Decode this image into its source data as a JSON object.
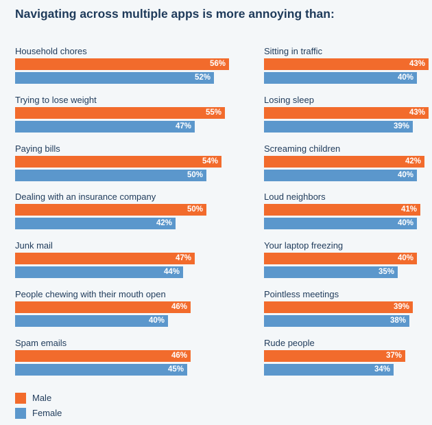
{
  "title": "Navigating across multiple apps is more annoying than:",
  "colors": {
    "male": "#f26b2c",
    "female": "#5b97cc"
  },
  "legend": [
    {
      "label": "Male",
      "color": "#f26b2c"
    },
    {
      "label": "Female",
      "color": "#5b97cc"
    }
  ],
  "chart_data": {
    "type": "bar",
    "orientation": "horizontal",
    "title": "Navigating across multiple apps is more annoying than:",
    "unit": "%",
    "series_names": [
      "Male",
      "Female"
    ],
    "columns": [
      {
        "items": [
          {
            "category": "Household chores",
            "male": 56,
            "female": 52
          },
          {
            "category": "Trying to lose weight",
            "male": 55,
            "female": 47
          },
          {
            "category": "Paying bills",
            "male": 54,
            "female": 50
          },
          {
            "category": "Dealing with an insurance company",
            "male": 50,
            "female": 42
          },
          {
            "category": "Junk mail",
            "male": 47,
            "female": 44
          },
          {
            "category": "People chewing with their mouth open",
            "male": 46,
            "female": 40
          },
          {
            "category": "Spam emails",
            "male": 46,
            "female": 45
          }
        ]
      },
      {
        "items": [
          {
            "category": "Sitting in traffic",
            "male": 43,
            "female": 40
          },
          {
            "category": "Losing sleep",
            "male": 43,
            "female": 39
          },
          {
            "category": "Screaming children",
            "male": 42,
            "female": 40
          },
          {
            "category": "Loud neighbors",
            "male": 41,
            "female": 40
          },
          {
            "category": "Your laptop freezing",
            "male": 40,
            "female": 35
          },
          {
            "category": "Pointless meetings",
            "male": 39,
            "female": 38
          },
          {
            "category": "Rude people",
            "male": 37,
            "female": 34
          }
        ]
      }
    ]
  }
}
